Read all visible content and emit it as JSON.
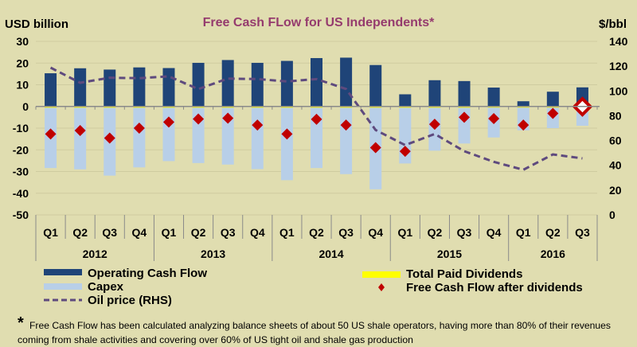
{
  "chart_data": {
    "type": "bar",
    "title": "Free Cash FLow for US Independents*",
    "ylabel_left": "USD billion",
    "ylabel_right": "$/bbl",
    "ylim_left": [
      -50,
      30
    ],
    "ylim_right": [
      0,
      140
    ],
    "yticks_left": [
      "30",
      "20",
      "10",
      "0",
      "-10",
      "-20",
      "-30",
      "-40",
      "-50"
    ],
    "yticks_right": [
      "140",
      "120",
      "100",
      "80",
      "60",
      "40",
      "20",
      "0"
    ],
    "grid": true,
    "categories": [
      "Q1",
      "Q2",
      "Q3",
      "Q4",
      "Q1",
      "Q2",
      "Q3",
      "Q4",
      "Q1",
      "Q2",
      "Q3",
      "Q4",
      "Q1",
      "Q2",
      "Q3",
      "Q4",
      "Q1",
      "Q2",
      "Q3"
    ],
    "years": [
      {
        "label": "2012",
        "quarters": 4
      },
      {
        "label": "2013",
        "quarters": 4
      },
      {
        "label": "2014",
        "quarters": 4
      },
      {
        "label": "2015",
        "quarters": 4
      },
      {
        "label": "2016",
        "quarters": 3
      }
    ],
    "series": [
      {
        "name": "Operating Cash Flow",
        "type": "bar",
        "axis": "left",
        "color": "#1f4478",
        "values": [
          15.3,
          17.6,
          17.0,
          18.0,
          17.7,
          20.1,
          21.4,
          20.1,
          21.0,
          22.3,
          22.5,
          19.1,
          5.6,
          12.1,
          11.7,
          8.7,
          2.4,
          6.8,
          8.8
        ]
      },
      {
        "name": "Total Paid Dividends",
        "type": "bar",
        "axis": "left",
        "color": "#ffff00",
        "values": [
          -0.6,
          -0.6,
          -0.6,
          -0.6,
          -0.6,
          -0.6,
          -0.6,
          -0.6,
          -0.6,
          -0.6,
          -0.6,
          -0.6,
          -0.6,
          -0.6,
          -0.6,
          -0.4,
          -0.3,
          -0.3,
          -0.3
        ]
      },
      {
        "name": "Capex",
        "type": "bar",
        "axis": "left",
        "color": "#b8cfe8",
        "values": [
          -28.4,
          -29.0,
          -31.9,
          -28.1,
          -25.2,
          -26.1,
          -26.8,
          -28.9,
          -34.0,
          -28.4,
          -31.2,
          -38.2,
          -26.3,
          -20.4,
          -17.1,
          -14.3,
          -11.0,
          -10.0,
          -8.9
        ]
      },
      {
        "name": "Free Cash Flow after dividends",
        "type": "scatter",
        "axis": "left",
        "color": "#c00000",
        "values": [
          -12.7,
          -11.1,
          -14.6,
          -10.0,
          -7.2,
          -5.8,
          -5.4,
          -8.6,
          -12.7,
          -5.9,
          -8.6,
          -19.0,
          -20.7,
          -8.2,
          -5.0,
          -5.6,
          -8.6,
          -3.2,
          -0.1
        ]
      },
      {
        "name": "Oil price (RHS)",
        "type": "line",
        "axis": "right",
        "color": "#5e4a7e",
        "style": "dashed",
        "values": [
          118.8,
          106.6,
          110.7,
          110.3,
          111.8,
          101.5,
          110.0,
          109.6,
          107.7,
          109.6,
          101.6,
          68.5,
          56.3,
          65.3,
          51.4,
          42.8,
          36.4,
          48.8,
          45.6
        ]
      }
    ],
    "highlight": {
      "series": "Free Cash Flow after dividends",
      "index": 18,
      "style": "white diamond with red border"
    },
    "legend_placement": "bottom"
  },
  "footnote": {
    "marker": "*",
    "line1": "Free Cash Flow has been calculated analyzing balance sheets of about 50 US shale operators, having more than 80% of their revenues",
    "line2": "coming from shale activities and covering over 60% of US tight oil and shale gas production"
  },
  "colors": {
    "background": "#e0ddb0",
    "title": "#953b6e",
    "grid": "#cfcca0",
    "axis": "#8a8a8a"
  }
}
